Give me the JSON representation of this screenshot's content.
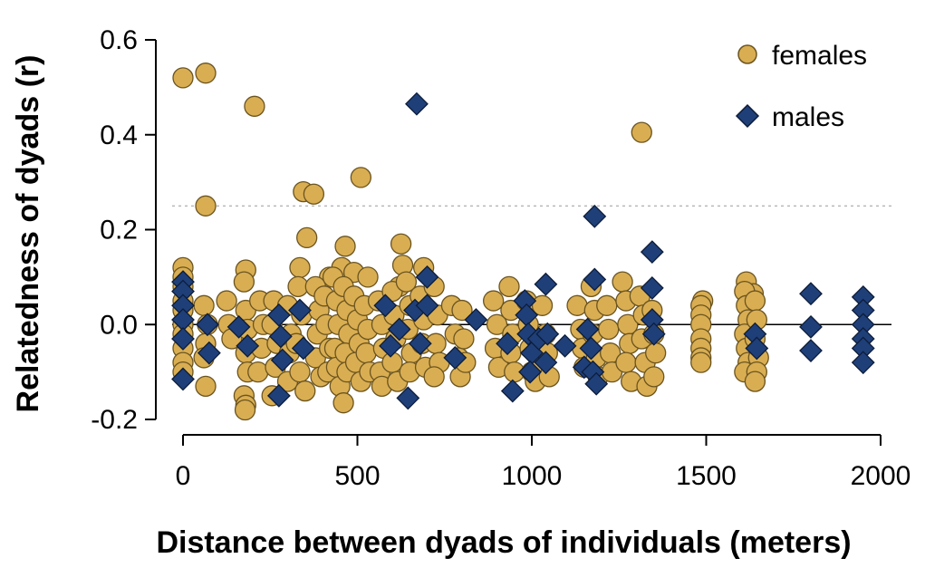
{
  "chart_data": {
    "type": "scatter",
    "xlabel": "Distance between dyads of individuals (meters)",
    "ylabel": "Relatedness of dyads (r)",
    "xlim": [
      0,
      2000
    ],
    "ylim": [
      -0.2,
      0.6
    ],
    "x_ticks": [
      0,
      500,
      1000,
      1500,
      2000
    ],
    "y_ticks": [
      -0.2,
      0.0,
      0.2,
      0.4,
      0.6
    ],
    "x_tick_labels": [
      "0",
      "500",
      "1000",
      "1500",
      "2000"
    ],
    "y_tick_labels": [
      "-0.2",
      "0.0",
      "0.2",
      "0.4",
      "0.6"
    ],
    "reference_lines": [
      {
        "y": 0.0,
        "style": "solid"
      },
      {
        "y": 0.25,
        "style": "dotted"
      }
    ],
    "legend_position": "top-right",
    "grid": false,
    "series": [
      {
        "name": "females",
        "marker": "circle",
        "color": "#D9AE52",
        "points": [
          [
            0,
            0.52
          ],
          [
            65,
            0.53
          ],
          [
            205,
            0.46
          ],
          [
            65,
            0.25
          ],
          [
            345,
            0.28
          ],
          [
            375,
            0.275
          ],
          [
            510,
            0.31
          ],
          [
            1315,
            0.405
          ],
          [
            355,
            0.183
          ],
          [
            465,
            0.165
          ],
          [
            625,
            0.17
          ],
          [
            630,
            0.125
          ],
          [
            0,
            0.12
          ],
          [
            0,
            0.1
          ],
          [
            180,
            0.115
          ],
          [
            335,
            0.12
          ],
          [
            420,
            0.1
          ],
          [
            455,
            0.12
          ],
          [
            490,
            0.11
          ],
          [
            530,
            0.1
          ],
          [
            690,
            0.12
          ],
          [
            620,
            0.08
          ],
          [
            1260,
            0.09
          ],
          [
            1615,
            0.09
          ],
          [
            1635,
            0.065
          ],
          [
            1490,
            0.05
          ],
          [
            0,
            0.08
          ],
          [
            0,
            0.05
          ],
          [
            0,
            0.03
          ],
          [
            0,
            0.0
          ],
          [
            0,
            -0.02
          ],
          [
            0,
            -0.05
          ],
          [
            0,
            -0.08
          ],
          [
            0,
            -0.1
          ],
          [
            60,
            0.04
          ],
          [
            70,
            0.0
          ],
          [
            65,
            -0.04
          ],
          [
            60,
            -0.07
          ],
          [
            65,
            -0.13
          ],
          [
            125,
            0.05
          ],
          [
            130,
            0.0
          ],
          [
            140,
            -0.03
          ],
          [
            175,
            0.09
          ],
          [
            180,
            0.03
          ],
          [
            185,
            -0.01
          ],
          [
            180,
            -0.06
          ],
          [
            185,
            -0.1
          ],
          [
            175,
            -0.15
          ],
          [
            180,
            -0.17
          ],
          [
            178,
            -0.18
          ],
          [
            220,
            0.05
          ],
          [
            230,
            0.0
          ],
          [
            225,
            -0.05
          ],
          [
            215,
            -0.1
          ],
          [
            260,
            0.05
          ],
          [
            255,
            0.0
          ],
          [
            270,
            -0.04
          ],
          [
            265,
            -0.09
          ],
          [
            255,
            -0.15
          ],
          [
            300,
            0.04
          ],
          [
            310,
            -0.02
          ],
          [
            305,
            -0.06
          ],
          [
            300,
            -0.12
          ],
          [
            330,
            0.08
          ],
          [
            340,
            0.02
          ],
          [
            325,
            -0.04
          ],
          [
            335,
            -0.1
          ],
          [
            350,
            -0.14
          ],
          [
            380,
            0.08
          ],
          [
            390,
            0.03
          ],
          [
            385,
            -0.02
          ],
          [
            380,
            -0.07
          ],
          [
            395,
            -0.11
          ],
          [
            405,
            0.06
          ],
          [
            410,
            0.0
          ],
          [
            420,
            -0.05
          ],
          [
            415,
            -0.1
          ],
          [
            430,
            0.1
          ],
          [
            440,
            0.05
          ],
          [
            445,
            0.0
          ],
          [
            435,
            -0.05
          ],
          [
            440,
            -0.09
          ],
          [
            450,
            -0.13
          ],
          [
            460,
            -0.165
          ],
          [
            460,
            0.08
          ],
          [
            470,
            0.03
          ],
          [
            475,
            -0.02
          ],
          [
            465,
            -0.06
          ],
          [
            470,
            -0.1
          ],
          [
            490,
            0.06
          ],
          [
            500,
            0.01
          ],
          [
            505,
            -0.04
          ],
          [
            495,
            -0.08
          ],
          [
            510,
            -0.12
          ],
          [
            520,
            0.04
          ],
          [
            530,
            -0.01
          ],
          [
            525,
            -0.06
          ],
          [
            535,
            -0.1
          ],
          [
            560,
            0.05
          ],
          [
            570,
            0.0
          ],
          [
            575,
            -0.05
          ],
          [
            565,
            -0.1
          ],
          [
            570,
            -0.13
          ],
          [
            600,
            0.07
          ],
          [
            605,
            0.02
          ],
          [
            610,
            -0.03
          ],
          [
            600,
            -0.08
          ],
          [
            615,
            -0.12
          ],
          [
            640,
            0.09
          ],
          [
            650,
            0.04
          ],
          [
            645,
            -0.01
          ],
          [
            655,
            -0.06
          ],
          [
            650,
            -0.1
          ],
          [
            680,
            0.06
          ],
          [
            690,
            0.01
          ],
          [
            685,
            -0.04
          ],
          [
            695,
            -0.09
          ],
          [
            720,
            0.08
          ],
          [
            730,
            0.02
          ],
          [
            725,
            -0.04
          ],
          [
            735,
            -0.08
          ],
          [
            720,
            -0.11
          ],
          [
            770,
            0.04
          ],
          [
            780,
            -0.02
          ],
          [
            790,
            -0.07
          ],
          [
            795,
            -0.11
          ],
          [
            800,
            0.03
          ],
          [
            805,
            -0.03
          ],
          [
            810,
            -0.08
          ],
          [
            890,
            0.05
          ],
          [
            900,
            0.0
          ],
          [
            895,
            -0.05
          ],
          [
            905,
            -0.09
          ],
          [
            935,
            0.08
          ],
          [
            940,
            0.03
          ],
          [
            945,
            -0.02
          ],
          [
            940,
            -0.06
          ],
          [
            950,
            -0.1
          ],
          [
            985,
            0.05
          ],
          [
            990,
            0.0
          ],
          [
            995,
            -0.05
          ],
          [
            1000,
            -0.1
          ],
          [
            1010,
            -0.12
          ],
          [
            1030,
            0.04
          ],
          [
            1040,
            -0.02
          ],
          [
            1045,
            -0.06
          ],
          [
            1050,
            -0.11
          ],
          [
            1130,
            0.04
          ],
          [
            1140,
            -0.01
          ],
          [
            1145,
            -0.05
          ],
          [
            1150,
            -0.09
          ],
          [
            1170,
            0.08
          ],
          [
            1180,
            0.03
          ],
          [
            1175,
            -0.02
          ],
          [
            1185,
            -0.07
          ],
          [
            1190,
            -0.11
          ],
          [
            1215,
            0.04
          ],
          [
            1220,
            -0.01
          ],
          [
            1225,
            -0.06
          ],
          [
            1230,
            -0.1
          ],
          [
            1270,
            0.05
          ],
          [
            1275,
            0.0
          ],
          [
            1280,
            -0.04
          ],
          [
            1270,
            -0.08
          ],
          [
            1285,
            -0.12
          ],
          [
            1310,
            0.06
          ],
          [
            1320,
            0.02
          ],
          [
            1315,
            -0.03
          ],
          [
            1325,
            -0.08
          ],
          [
            1330,
            -0.13
          ],
          [
            1345,
            0.03
          ],
          [
            1350,
            -0.02
          ],
          [
            1355,
            -0.06
          ],
          [
            1350,
            -0.11
          ],
          [
            1485,
            0.04
          ],
          [
            1485,
            0.02
          ],
          [
            1485,
            0.0
          ],
          [
            1485,
            -0.03
          ],
          [
            1485,
            -0.05
          ],
          [
            1485,
            -0.07
          ],
          [
            1485,
            -0.08
          ],
          [
            1610,
            0.07
          ],
          [
            1615,
            0.04
          ],
          [
            1620,
            0.01
          ],
          [
            1610,
            -0.02
          ],
          [
            1615,
            -0.05
          ],
          [
            1620,
            -0.08
          ],
          [
            1610,
            -0.1
          ],
          [
            1640,
            0.05
          ],
          [
            1645,
            0.01
          ],
          [
            1640,
            -0.03
          ],
          [
            1650,
            -0.07
          ],
          [
            1645,
            -0.1
          ],
          [
            1640,
            -0.12
          ]
        ]
      },
      {
        "name": "males",
        "marker": "diamond",
        "color": "#1F3F79",
        "points": [
          [
            670,
            0.465
          ],
          [
            1180,
            0.228
          ],
          [
            1345,
            0.153
          ],
          [
            1180,
            0.095
          ],
          [
            1040,
            0.085
          ],
          [
            1345,
            0.077
          ],
          [
            700,
            0.1
          ],
          [
            1800,
            0.065
          ],
          [
            1950,
            0.058
          ],
          [
            0,
            0.09
          ],
          [
            0,
            0.07
          ],
          [
            0,
            0.04
          ],
          [
            0,
            0.01
          ],
          [
            0,
            -0.03
          ],
          [
            0,
            -0.115
          ],
          [
            70,
            0.0
          ],
          [
            75,
            -0.06
          ],
          [
            160,
            -0.005
          ],
          [
            185,
            -0.045
          ],
          [
            275,
            0.02
          ],
          [
            280,
            -0.025
          ],
          [
            285,
            -0.075
          ],
          [
            275,
            -0.15
          ],
          [
            335,
            0.03
          ],
          [
            345,
            -0.05
          ],
          [
            580,
            0.04
          ],
          [
            595,
            -0.045
          ],
          [
            620,
            -0.01
          ],
          [
            645,
            -0.155
          ],
          [
            665,
            0.03
          ],
          [
            680,
            -0.04
          ],
          [
            700,
            0.04
          ],
          [
            780,
            -0.07
          ],
          [
            840,
            0.01
          ],
          [
            930,
            -0.04
          ],
          [
            945,
            -0.14
          ],
          [
            980,
            0.05
          ],
          [
            985,
            0.02
          ],
          [
            990,
            -0.02
          ],
          [
            1000,
            -0.06
          ],
          [
            995,
            -0.1
          ],
          [
            1020,
            -0.03
          ],
          [
            1040,
            -0.08
          ],
          [
            1045,
            -0.02
          ],
          [
            1095,
            -0.045
          ],
          [
            1150,
            -0.09
          ],
          [
            1160,
            -0.01
          ],
          [
            1170,
            -0.05
          ],
          [
            1175,
            -0.1
          ],
          [
            1185,
            -0.125
          ],
          [
            1345,
            0.01
          ],
          [
            1350,
            -0.02
          ],
          [
            1640,
            -0.02
          ],
          [
            1645,
            -0.05
          ],
          [
            1800,
            -0.005
          ],
          [
            1800,
            -0.055
          ],
          [
            1950,
            0.03
          ],
          [
            1950,
            0.0
          ],
          [
            1950,
            -0.03
          ],
          [
            1950,
            -0.05
          ],
          [
            1950,
            -0.08
          ]
        ]
      }
    ]
  }
}
